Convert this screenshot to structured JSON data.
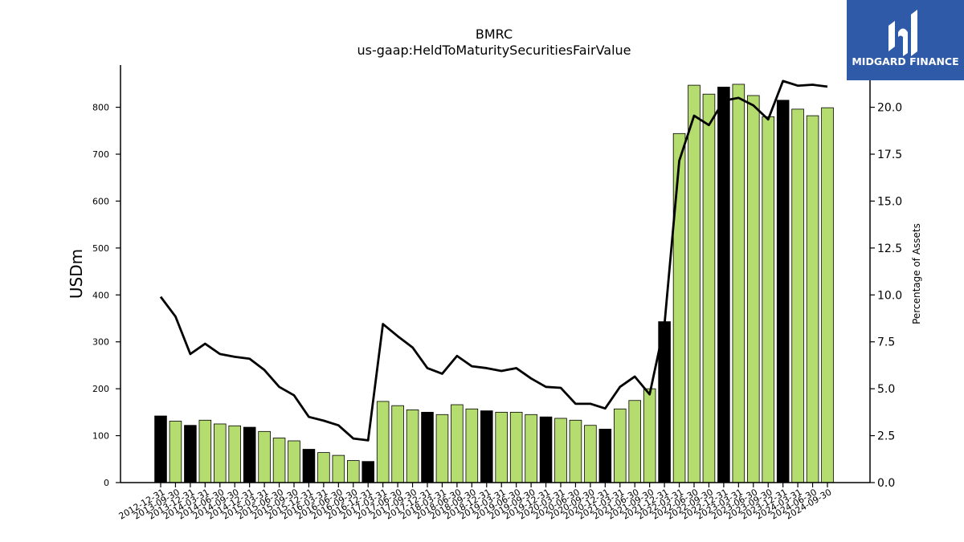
{
  "logo": {
    "text": "MIDGARD FINANCE",
    "bg_color": "#2f5aa8"
  },
  "chart_data": {
    "type": "bar",
    "title": "BMRC",
    "subtitle": "us-gaap:HeldToMaturitySecuritiesFairValue",
    "ylabel": "USDm",
    "y2label": "Percentage of Assets",
    "ylim": [
      0,
      890
    ],
    "y2lim": [
      0,
      22.25
    ],
    "yticks": [
      0,
      100,
      200,
      300,
      400,
      500,
      600,
      700,
      800
    ],
    "y2ticks": [
      "0.0",
      "2.5",
      "5.0",
      "7.5",
      "10.0",
      "12.5",
      "15.0",
      "17.5",
      "20.0"
    ],
    "categories": [
      "2012-12-31",
      "2013-09-30",
      "2013-12-31",
      "2014-03-31",
      "2014-06-30",
      "2014-09-30",
      "2014-12-31",
      "2015-03-31",
      "2015-06-30",
      "2015-09-30",
      "2015-12-31",
      "2016-03-31",
      "2016-06-30",
      "2016-09-30",
      "2016-12-31",
      "2017-03-31",
      "2017-06-30",
      "2017-09-30",
      "2017-12-31",
      "2018-03-31",
      "2018-06-30",
      "2018-09-30",
      "2018-12-31",
      "2019-03-31",
      "2019-06-30",
      "2019-09-30",
      "2019-12-31",
      "2020-03-31",
      "2020-06-30",
      "2020-09-30",
      "2020-12-31",
      "2021-03-31",
      "2021-06-30",
      "2021-09-30",
      "2021-12-31",
      "2022-03-31",
      "2022-06-30",
      "2022-09-30",
      "2022-12-31",
      "2023-03-31",
      "2023-06-30",
      "2023-09-30",
      "2023-12-31",
      "2024-03-31",
      "2024-06-30",
      "2024-09-30"
    ],
    "series": [
      {
        "type": "bar",
        "values": [
          142,
          131,
          122,
          133,
          125,
          121,
          118,
          109,
          95,
          89,
          71,
          64,
          58,
          47,
          45,
          173,
          164,
          155,
          150,
          145,
          166,
          157,
          153,
          150,
          150,
          145,
          140,
          137,
          133,
          122,
          114,
          157,
          175,
          200,
          343,
          744,
          847,
          828,
          843,
          849,
          825,
          780,
          815,
          796,
          782,
          799
        ],
        "highlight": [
          true,
          false,
          true,
          false,
          false,
          false,
          true,
          false,
          false,
          false,
          true,
          false,
          false,
          false,
          true,
          false,
          false,
          false,
          true,
          false,
          false,
          false,
          true,
          false,
          false,
          false,
          true,
          false,
          false,
          false,
          true,
          false,
          false,
          false,
          true,
          false,
          false,
          false,
          true,
          false,
          false,
          false,
          true,
          false,
          false,
          false
        ],
        "color": "#b5dc6e",
        "highlight_color": "#000000"
      },
      {
        "type": "line",
        "axis": "right",
        "values": [
          9.9,
          8.85,
          6.85,
          7.4,
          6.85,
          6.7,
          6.6,
          6.0,
          5.1,
          4.65,
          3.5,
          3.3,
          3.05,
          2.35,
          2.25,
          8.45,
          7.8,
          7.2,
          6.1,
          5.8,
          6.75,
          6.2,
          6.1,
          5.95,
          6.1,
          5.55,
          5.1,
          5.05,
          4.2,
          4.2,
          3.95,
          5.1,
          5.65,
          4.7,
          8.4,
          17.15,
          19.55,
          19.05,
          20.35,
          20.5,
          20.1,
          19.35,
          21.4,
          21.15,
          21.2,
          21.1
        ],
        "color": "#000000"
      }
    ],
    "grid": false
  }
}
